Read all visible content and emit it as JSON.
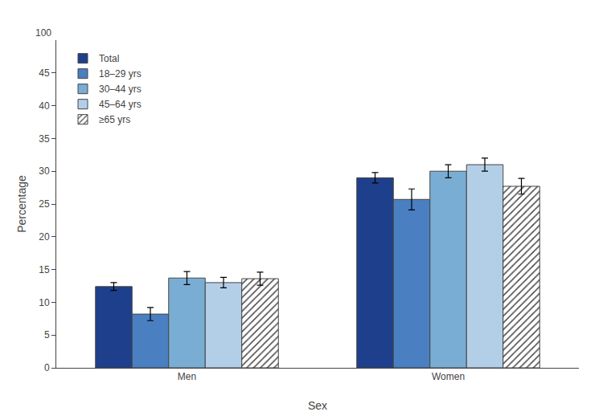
{
  "chart_data": {
    "type": "bar",
    "xlabel": "Sex",
    "ylabel": "Percentage",
    "categories": [
      "Men",
      "Women"
    ],
    "series": [
      {
        "name": "Total",
        "color": "#1e3f8c",
        "values": [
          12.4,
          29.0
        ],
        "errors": [
          0.6,
          0.8
        ]
      },
      {
        "name": "18–29 yrs",
        "color": "#4a7fc1",
        "values": [
          8.2,
          25.7
        ],
        "errors": [
          1.0,
          1.6
        ]
      },
      {
        "name": "30–44 yrs",
        "color": "#7aadd4",
        "values": [
          13.7,
          30.0
        ],
        "errors": [
          1.0,
          1.0
        ]
      },
      {
        "name": "45–64 yrs",
        "color": "#b3cfe8",
        "values": [
          13.0,
          31.0
        ],
        "errors": [
          0.8,
          1.0
        ]
      },
      {
        "name": "≥65 yrs",
        "color": "#ffffff",
        "values": [
          13.6,
          27.7
        ],
        "errors": [
          1.0,
          1.2
        ]
      }
    ],
    "ylim": [
      0,
      50
    ],
    "yticks": [
      0,
      5,
      10,
      15,
      20,
      25,
      30,
      35,
      40,
      45
    ],
    "annotations": [
      "100"
    ],
    "grid": false,
    "legend": "upper left"
  }
}
